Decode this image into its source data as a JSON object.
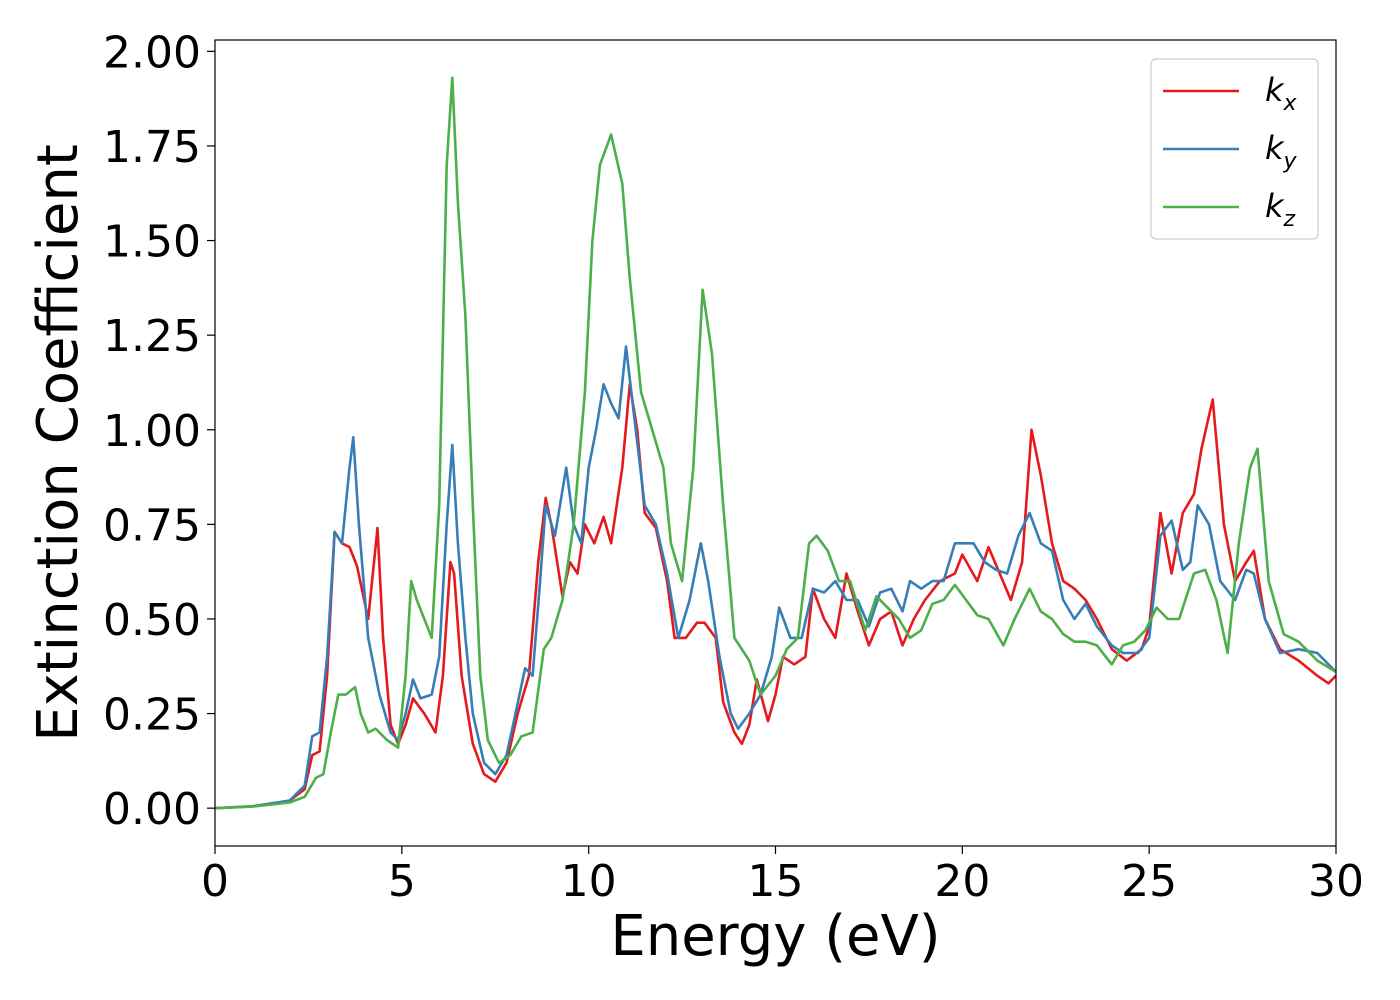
{
  "chart_data": {
    "type": "line",
    "title": "",
    "xlabel": "Energy (eV)",
    "ylabel": "Extinction Coefficient",
    "xlim": [
      0,
      30
    ],
    "ylim": [
      -0.1,
      2.03
    ],
    "xticks": [
      "0",
      "5",
      "10",
      "15",
      "20",
      "25",
      "30"
    ],
    "yticks": [
      "0.00",
      "0.25",
      "0.50",
      "0.75",
      "1.00",
      "1.25",
      "1.50",
      "1.75",
      "2.00"
    ],
    "grid": false,
    "legend_position": "top-right",
    "series": [
      {
        "name": "k_x",
        "label_main": "k",
        "label_sub": "x",
        "color": "#e41a1c",
        "points": [
          [
            0,
            0
          ],
          [
            1,
            0.005
          ],
          [
            2,
            0.02
          ],
          [
            2.4,
            0.05
          ],
          [
            2.6,
            0.14
          ],
          [
            2.8,
            0.15
          ],
          [
            3.0,
            0.35
          ],
          [
            3.2,
            0.73
          ],
          [
            3.4,
            0.7
          ],
          [
            3.6,
            0.69
          ],
          [
            3.8,
            0.64
          ],
          [
            4.1,
            0.5
          ],
          [
            4.35,
            0.74
          ],
          [
            4.5,
            0.45
          ],
          [
            4.7,
            0.22
          ],
          [
            4.9,
            0.17
          ],
          [
            5.1,
            0.22
          ],
          [
            5.3,
            0.29
          ],
          [
            5.6,
            0.25
          ],
          [
            5.9,
            0.2
          ],
          [
            6.1,
            0.35
          ],
          [
            6.3,
            0.65
          ],
          [
            6.4,
            0.62
          ],
          [
            6.6,
            0.35
          ],
          [
            6.9,
            0.17
          ],
          [
            7.2,
            0.09
          ],
          [
            7.5,
            0.07
          ],
          [
            7.8,
            0.12
          ],
          [
            8.1,
            0.25
          ],
          [
            8.4,
            0.35
          ],
          [
            8.65,
            0.65
          ],
          [
            8.85,
            0.82
          ],
          [
            9.0,
            0.75
          ],
          [
            9.3,
            0.56
          ],
          [
            9.5,
            0.65
          ],
          [
            9.7,
            0.62
          ],
          [
            9.9,
            0.75
          ],
          [
            10.15,
            0.7
          ],
          [
            10.4,
            0.77
          ],
          [
            10.6,
            0.7
          ],
          [
            10.9,
            0.9
          ],
          [
            11.1,
            1.12
          ],
          [
            11.3,
            1.0
          ],
          [
            11.5,
            0.78
          ],
          [
            11.8,
            0.74
          ],
          [
            12.1,
            0.6
          ],
          [
            12.3,
            0.45
          ],
          [
            12.6,
            0.45
          ],
          [
            12.9,
            0.49
          ],
          [
            13.1,
            0.49
          ],
          [
            13.4,
            0.45
          ],
          [
            13.6,
            0.28
          ],
          [
            13.9,
            0.2
          ],
          [
            14.1,
            0.17
          ],
          [
            14.3,
            0.22
          ],
          [
            14.5,
            0.34
          ],
          [
            14.8,
            0.23
          ],
          [
            15.0,
            0.3
          ],
          [
            15.2,
            0.4
          ],
          [
            15.5,
            0.38
          ],
          [
            15.8,
            0.4
          ],
          [
            16.0,
            0.58
          ],
          [
            16.3,
            0.5
          ],
          [
            16.6,
            0.45
          ],
          [
            16.9,
            0.62
          ],
          [
            17.2,
            0.52
          ],
          [
            17.5,
            0.43
          ],
          [
            17.8,
            0.5
          ],
          [
            18.1,
            0.52
          ],
          [
            18.4,
            0.43
          ],
          [
            18.7,
            0.5
          ],
          [
            19.0,
            0.55
          ],
          [
            19.4,
            0.6
          ],
          [
            19.8,
            0.62
          ],
          [
            20.0,
            0.67
          ],
          [
            20.4,
            0.6
          ],
          [
            20.7,
            0.69
          ],
          [
            21.0,
            0.62
          ],
          [
            21.3,
            0.55
          ],
          [
            21.6,
            0.65
          ],
          [
            21.85,
            1.0
          ],
          [
            22.1,
            0.88
          ],
          [
            22.4,
            0.7
          ],
          [
            22.7,
            0.6
          ],
          [
            23.0,
            0.58
          ],
          [
            23.3,
            0.55
          ],
          [
            23.6,
            0.5
          ],
          [
            24.0,
            0.42
          ],
          [
            24.4,
            0.39
          ],
          [
            24.8,
            0.42
          ],
          [
            25.0,
            0.48
          ],
          [
            25.3,
            0.78
          ],
          [
            25.6,
            0.62
          ],
          [
            25.9,
            0.78
          ],
          [
            26.2,
            0.83
          ],
          [
            26.4,
            0.95
          ],
          [
            26.7,
            1.08
          ],
          [
            27.0,
            0.75
          ],
          [
            27.3,
            0.6
          ],
          [
            27.6,
            0.65
          ],
          [
            27.8,
            0.68
          ],
          [
            28.1,
            0.5
          ],
          [
            28.5,
            0.42
          ],
          [
            29.0,
            0.39
          ],
          [
            29.5,
            0.35
          ],
          [
            29.8,
            0.33
          ],
          [
            30.0,
            0.35
          ]
        ]
      },
      {
        "name": "k_y",
        "label_main": "k",
        "label_sub": "y",
        "color": "#377eb8",
        "points": [
          [
            0,
            0
          ],
          [
            1,
            0.005
          ],
          [
            2,
            0.02
          ],
          [
            2.4,
            0.06
          ],
          [
            2.6,
            0.19
          ],
          [
            2.8,
            0.2
          ],
          [
            3.0,
            0.4
          ],
          [
            3.2,
            0.73
          ],
          [
            3.4,
            0.7
          ],
          [
            3.6,
            0.9
          ],
          [
            3.7,
            0.98
          ],
          [
            3.85,
            0.75
          ],
          [
            4.1,
            0.45
          ],
          [
            4.4,
            0.3
          ],
          [
            4.7,
            0.2
          ],
          [
            4.9,
            0.18
          ],
          [
            5.1,
            0.25
          ],
          [
            5.3,
            0.34
          ],
          [
            5.5,
            0.29
          ],
          [
            5.8,
            0.3
          ],
          [
            6.0,
            0.4
          ],
          [
            6.2,
            0.75
          ],
          [
            6.35,
            0.96
          ],
          [
            6.5,
            0.7
          ],
          [
            6.7,
            0.45
          ],
          [
            6.9,
            0.25
          ],
          [
            7.2,
            0.12
          ],
          [
            7.5,
            0.09
          ],
          [
            7.8,
            0.14
          ],
          [
            8.0,
            0.23
          ],
          [
            8.3,
            0.37
          ],
          [
            8.5,
            0.35
          ],
          [
            8.7,
            0.6
          ],
          [
            8.85,
            0.8
          ],
          [
            9.1,
            0.72
          ],
          [
            9.4,
            0.9
          ],
          [
            9.6,
            0.75
          ],
          [
            9.8,
            0.7
          ],
          [
            10.0,
            0.9
          ],
          [
            10.2,
            1.0
          ],
          [
            10.4,
            1.12
          ],
          [
            10.6,
            1.07
          ],
          [
            10.8,
            1.03
          ],
          [
            11.0,
            1.22
          ],
          [
            11.2,
            1.05
          ],
          [
            11.5,
            0.8
          ],
          [
            11.8,
            0.75
          ],
          [
            12.1,
            0.62
          ],
          [
            12.4,
            0.45
          ],
          [
            12.7,
            0.55
          ],
          [
            13.0,
            0.7
          ],
          [
            13.2,
            0.6
          ],
          [
            13.5,
            0.4
          ],
          [
            13.8,
            0.25
          ],
          [
            14.0,
            0.21
          ],
          [
            14.3,
            0.25
          ],
          [
            14.6,
            0.3
          ],
          [
            14.9,
            0.4
          ],
          [
            15.1,
            0.53
          ],
          [
            15.4,
            0.45
          ],
          [
            15.7,
            0.45
          ],
          [
            16.0,
            0.58
          ],
          [
            16.3,
            0.57
          ],
          [
            16.6,
            0.6
          ],
          [
            16.9,
            0.55
          ],
          [
            17.2,
            0.55
          ],
          [
            17.5,
            0.48
          ],
          [
            17.8,
            0.57
          ],
          [
            18.1,
            0.58
          ],
          [
            18.4,
            0.52
          ],
          [
            18.6,
            0.6
          ],
          [
            18.9,
            0.58
          ],
          [
            19.2,
            0.6
          ],
          [
            19.5,
            0.6
          ],
          [
            19.8,
            0.7
          ],
          [
            20.0,
            0.7
          ],
          [
            20.3,
            0.7
          ],
          [
            20.6,
            0.65
          ],
          [
            20.9,
            0.63
          ],
          [
            21.2,
            0.62
          ],
          [
            21.5,
            0.72
          ],
          [
            21.8,
            0.78
          ],
          [
            22.1,
            0.7
          ],
          [
            22.4,
            0.68
          ],
          [
            22.7,
            0.55
          ],
          [
            23.0,
            0.5
          ],
          [
            23.3,
            0.54
          ],
          [
            23.6,
            0.48
          ],
          [
            24.0,
            0.43
          ],
          [
            24.3,
            0.41
          ],
          [
            24.7,
            0.41
          ],
          [
            25.0,
            0.45
          ],
          [
            25.3,
            0.72
          ],
          [
            25.6,
            0.76
          ],
          [
            25.9,
            0.63
          ],
          [
            26.1,
            0.65
          ],
          [
            26.3,
            0.8
          ],
          [
            26.6,
            0.75
          ],
          [
            26.9,
            0.6
          ],
          [
            27.3,
            0.55
          ],
          [
            27.6,
            0.63
          ],
          [
            27.8,
            0.62
          ],
          [
            28.1,
            0.5
          ],
          [
            28.5,
            0.41
          ],
          [
            29.0,
            0.42
          ],
          [
            29.5,
            0.41
          ],
          [
            29.8,
            0.38
          ],
          [
            30.0,
            0.36
          ]
        ]
      },
      {
        "name": "k_z",
        "label_main": "k",
        "label_sub": "z",
        "color": "#4daf4a",
        "points": [
          [
            0,
            0
          ],
          [
            1,
            0.004
          ],
          [
            2,
            0.015
          ],
          [
            2.4,
            0.03
          ],
          [
            2.7,
            0.08
          ],
          [
            2.9,
            0.09
          ],
          [
            3.1,
            0.2
          ],
          [
            3.3,
            0.3
          ],
          [
            3.5,
            0.3
          ],
          [
            3.75,
            0.32
          ],
          [
            3.9,
            0.25
          ],
          [
            4.1,
            0.2
          ],
          [
            4.3,
            0.21
          ],
          [
            4.6,
            0.18
          ],
          [
            4.9,
            0.16
          ],
          [
            5.1,
            0.35
          ],
          [
            5.25,
            0.6
          ],
          [
            5.4,
            0.55
          ],
          [
            5.6,
            0.5
          ],
          [
            5.8,
            0.45
          ],
          [
            6.0,
            0.8
          ],
          [
            6.2,
            1.7
          ],
          [
            6.35,
            1.93
          ],
          [
            6.5,
            1.6
          ],
          [
            6.7,
            1.3
          ],
          [
            6.9,
            0.8
          ],
          [
            7.1,
            0.35
          ],
          [
            7.3,
            0.18
          ],
          [
            7.6,
            0.12
          ],
          [
            7.9,
            0.14
          ],
          [
            8.2,
            0.19
          ],
          [
            8.5,
            0.2
          ],
          [
            8.8,
            0.42
          ],
          [
            9.0,
            0.45
          ],
          [
            9.3,
            0.55
          ],
          [
            9.6,
            0.75
          ],
          [
            9.9,
            1.1
          ],
          [
            10.1,
            1.5
          ],
          [
            10.3,
            1.7
          ],
          [
            10.6,
            1.78
          ],
          [
            10.9,
            1.65
          ],
          [
            11.1,
            1.4
          ],
          [
            11.4,
            1.1
          ],
          [
            11.7,
            1.0
          ],
          [
            12.0,
            0.9
          ],
          [
            12.2,
            0.7
          ],
          [
            12.5,
            0.6
          ],
          [
            12.8,
            0.9
          ],
          [
            13.05,
            1.37
          ],
          [
            13.3,
            1.2
          ],
          [
            13.6,
            0.8
          ],
          [
            13.9,
            0.45
          ],
          [
            14.3,
            0.39
          ],
          [
            14.6,
            0.3
          ],
          [
            15.0,
            0.35
          ],
          [
            15.3,
            0.42
          ],
          [
            15.6,
            0.45
          ],
          [
            15.9,
            0.7
          ],
          [
            16.1,
            0.72
          ],
          [
            16.4,
            0.68
          ],
          [
            16.7,
            0.6
          ],
          [
            17.0,
            0.6
          ],
          [
            17.4,
            0.47
          ],
          [
            17.7,
            0.56
          ],
          [
            18.0,
            0.53
          ],
          [
            18.3,
            0.5
          ],
          [
            18.6,
            0.45
          ],
          [
            18.9,
            0.47
          ],
          [
            19.2,
            0.54
          ],
          [
            19.5,
            0.55
          ],
          [
            19.8,
            0.59
          ],
          [
            20.1,
            0.55
          ],
          [
            20.4,
            0.51
          ],
          [
            20.7,
            0.5
          ],
          [
            21.1,
            0.43
          ],
          [
            21.4,
            0.5
          ],
          [
            21.8,
            0.58
          ],
          [
            22.1,
            0.52
          ],
          [
            22.4,
            0.5
          ],
          [
            22.7,
            0.46
          ],
          [
            23.0,
            0.44
          ],
          [
            23.3,
            0.44
          ],
          [
            23.6,
            0.43
          ],
          [
            24.0,
            0.38
          ],
          [
            24.3,
            0.43
          ],
          [
            24.6,
            0.44
          ],
          [
            24.9,
            0.47
          ],
          [
            25.2,
            0.53
          ],
          [
            25.5,
            0.5
          ],
          [
            25.8,
            0.5
          ],
          [
            26.2,
            0.62
          ],
          [
            26.5,
            0.63
          ],
          [
            26.8,
            0.55
          ],
          [
            27.1,
            0.41
          ],
          [
            27.4,
            0.7
          ],
          [
            27.7,
            0.9
          ],
          [
            27.9,
            0.95
          ],
          [
            28.2,
            0.6
          ],
          [
            28.6,
            0.46
          ],
          [
            29.0,
            0.44
          ],
          [
            29.5,
            0.39
          ],
          [
            30.0,
            0.36
          ]
        ]
      }
    ]
  }
}
